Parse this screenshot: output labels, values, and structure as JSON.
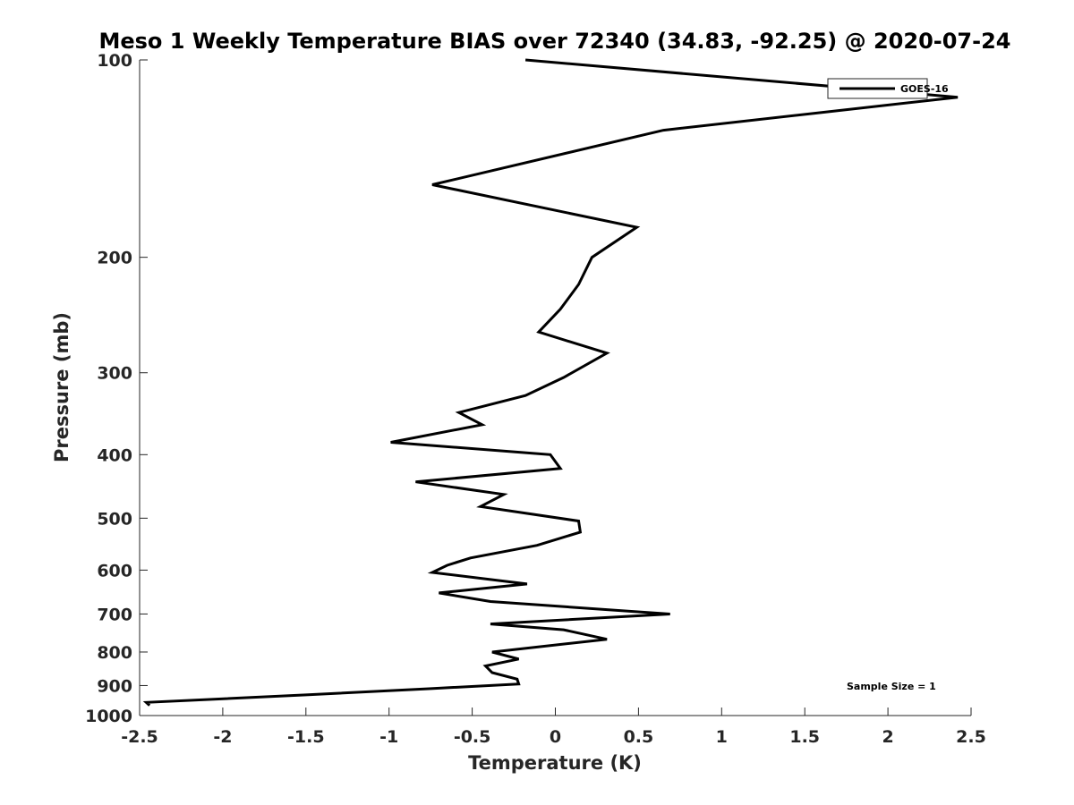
{
  "chart_data": {
    "type": "line",
    "title": "Meso 1 Weekly Temperature BIAS over 72340 (34.83, -92.25) @ 2020-07-24",
    "xlabel": "Temperature (K)",
    "ylabel": "Pressure (mb)",
    "xlim": [
      -2.5,
      2.5
    ],
    "ylim": [
      100,
      1000
    ],
    "y_scale": "log",
    "y_reversed": true,
    "x_ticks": [
      "-2.5",
      "-2",
      "-1.5",
      "-1",
      "-0.5",
      "0",
      "0.5",
      "1",
      "1.5",
      "2",
      "2.5"
    ],
    "y_ticks": [
      "100",
      "200",
      "300",
      "400",
      "500",
      "600",
      "700",
      "800",
      "900",
      "1000"
    ],
    "grid": false,
    "legend_position": "top-right",
    "annotation": "Sample Size = 1",
    "series": [
      {
        "name": "GOES-16",
        "color": "#000000",
        "points": [
          {
            "x": -0.18,
            "p": 100
          },
          {
            "x": 2.42,
            "p": 114
          },
          {
            "x": 0.65,
            "p": 128
          },
          {
            "x": -0.74,
            "p": 155
          },
          {
            "x": 0.49,
            "p": 180
          },
          {
            "x": 0.22,
            "p": 200
          },
          {
            "x": 0.14,
            "p": 220
          },
          {
            "x": 0.03,
            "p": 240
          },
          {
            "x": -0.1,
            "p": 260
          },
          {
            "x": 0.31,
            "p": 280
          },
          {
            "x": 0.05,
            "p": 305
          },
          {
            "x": -0.18,
            "p": 325
          },
          {
            "x": -0.58,
            "p": 345
          },
          {
            "x": -0.44,
            "p": 360
          },
          {
            "x": -0.99,
            "p": 383
          },
          {
            "x": -0.03,
            "p": 400
          },
          {
            "x": 0.03,
            "p": 420
          },
          {
            "x": -0.84,
            "p": 440
          },
          {
            "x": -0.31,
            "p": 460
          },
          {
            "x": -0.45,
            "p": 480
          },
          {
            "x": 0.14,
            "p": 505
          },
          {
            "x": 0.15,
            "p": 525
          },
          {
            "x": -0.11,
            "p": 550
          },
          {
            "x": -0.51,
            "p": 575
          },
          {
            "x": -0.65,
            "p": 590
          },
          {
            "x": -0.74,
            "p": 605
          },
          {
            "x": -0.17,
            "p": 630
          },
          {
            "x": -0.7,
            "p": 650
          },
          {
            "x": -0.39,
            "p": 670
          },
          {
            "x": 0.69,
            "p": 700
          },
          {
            "x": -0.39,
            "p": 725
          },
          {
            "x": 0.05,
            "p": 740
          },
          {
            "x": 0.31,
            "p": 765
          },
          {
            "x": -0.38,
            "p": 800
          },
          {
            "x": -0.22,
            "p": 820
          },
          {
            "x": -0.42,
            "p": 840
          },
          {
            "x": -0.38,
            "p": 860
          },
          {
            "x": -0.23,
            "p": 880
          },
          {
            "x": -0.22,
            "p": 895
          },
          {
            "x": -0.76,
            "p": 910
          },
          {
            "x": -1.5,
            "p": 930
          },
          {
            "x": -2.46,
            "p": 955
          },
          {
            "x": -2.44,
            "p": 965
          }
        ]
      }
    ]
  }
}
